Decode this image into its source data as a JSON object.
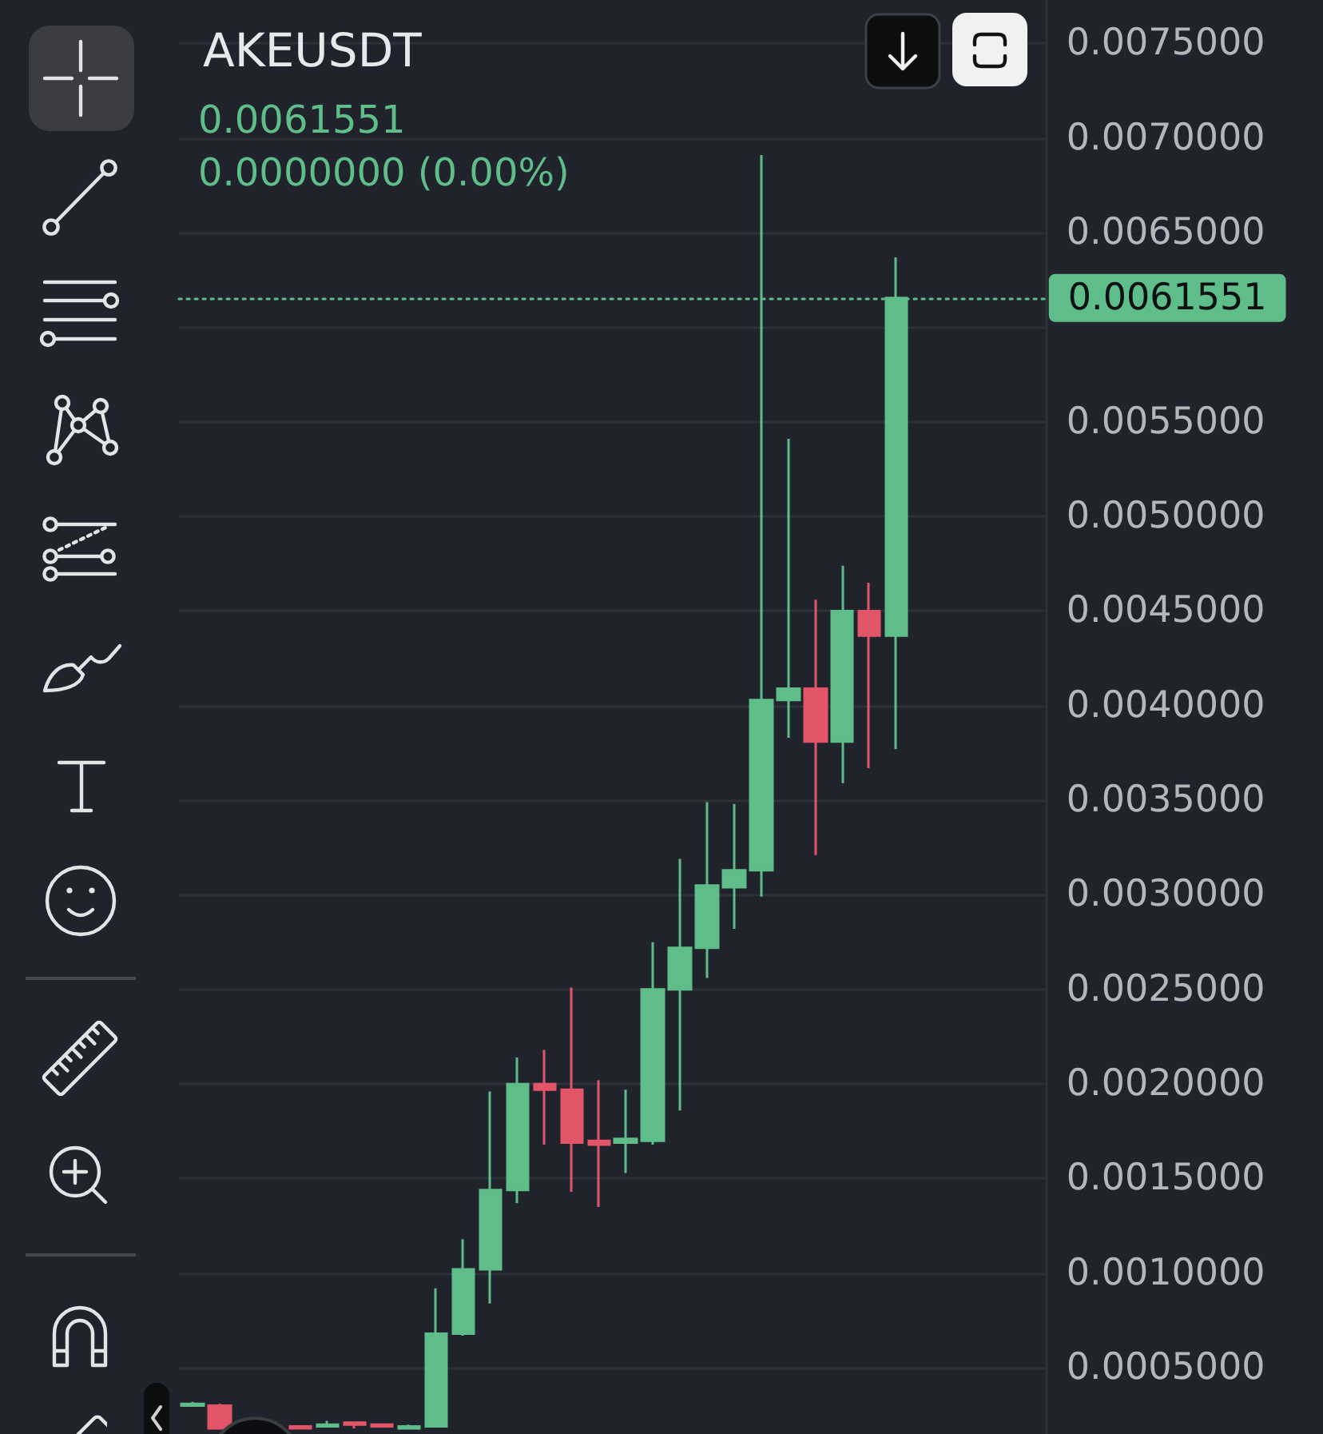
{
  "chart_data": {
    "type": "candlestick",
    "title": "AKEUSDT",
    "subtitle": "0.0061551",
    "annotations": [
      "0.0000000 (0.00%)"
    ],
    "categories": [
      null,
      null,
      null,
      null,
      null,
      null,
      null,
      null,
      null,
      null,
      null,
      null,
      null,
      null,
      null,
      null,
      null,
      null,
      null,
      null,
      null,
      null,
      null,
      null,
      null,
      null,
      null,
      null,
      null,
      null,
      null,
      null
    ],
    "ohlc": [
      [
        0.0003,
        0.00032,
        0.0003,
        0.00031
      ],
      [
        0.0003,
        0.00031,
        0.00018,
        0.00018
      ],
      null,
      null,
      [
        0.00019,
        0.00019,
        0.00018,
        0.00018
      ],
      [
        0.00019,
        0.00022,
        0.00019,
        0.0002
      ],
      [
        0.00021,
        0.00021,
        0.00018,
        0.0002
      ],
      [
        0.0002,
        0.0002,
        0.00019,
        0.00019
      ],
      [
        0.00018,
        0.0002,
        0.00018,
        0.00019
      ],
      [
        0.00019,
        0.00092,
        0.00019,
        0.00068
      ],
      [
        0.00068,
        0.00118,
        0.00067,
        0.00102
      ],
      [
        0.00102,
        0.00196,
        0.00084,
        0.00144
      ],
      [
        0.00144,
        0.00214,
        0.00137,
        0.002
      ],
      [
        0.002,
        0.00218,
        0.00168,
        0.00197
      ],
      [
        0.00197,
        0.00251,
        0.00143,
        0.00169
      ],
      [
        0.0017,
        0.00202,
        0.00135,
        0.00168
      ],
      [
        0.00169,
        0.00197,
        0.00153,
        0.00171
      ],
      [
        0.0017,
        0.00275,
        0.00168,
        0.0025
      ],
      [
        0.0025,
        0.00319,
        0.00186,
        0.00272
      ],
      [
        0.00272,
        0.00349,
        0.00256,
        0.00305
      ],
      [
        0.00304,
        0.00348,
        0.00282,
        0.00313
      ],
      [
        0.00313,
        0.00691,
        0.00299,
        0.00403
      ],
      [
        0.00403,
        0.00541,
        0.00383,
        0.00409
      ],
      [
        0.00409,
        0.00456,
        0.00321,
        0.00381
      ],
      [
        0.00381,
        0.00474,
        0.00359,
        0.0045
      ],
      [
        0.0045,
        0.00465,
        0.00367,
        0.00437
      ],
      [
        0.00437,
        0.00637,
        0.00377,
        0.0061551
      ],
      null,
      null,
      null,
      null,
      null
    ],
    "colors": [
      "#5ebd89",
      "#e25568",
      null,
      null,
      "#e25568",
      "#5ebd89",
      "#e25568",
      "#e25568",
      "#5ebd89",
      "#5ebd89",
      "#5ebd89",
      "#5ebd89",
      "#5ebd89",
      "#e25568",
      "#e25568",
      "#e25568",
      "#5ebd89",
      "#5ebd89",
      "#5ebd89",
      "#5ebd89",
      "#5ebd89",
      "#5ebd89",
      "#5ebd89",
      "#e25568",
      "#5ebd89",
      "#e25568",
      "#5ebd89",
      null,
      null,
      null,
      null,
      null
    ],
    "ylim": [
      0.00015,
      0.00773
    ],
    "yticks": [
      {
        "value": 0.0005,
        "label": "0.0005000"
      },
      {
        "value": 0.001,
        "label": "0.0010000"
      },
      {
        "value": 0.0015,
        "label": "0.0015000"
      },
      {
        "value": 0.002,
        "label": "0.0020000"
      },
      {
        "value": 0.0025,
        "label": "0.0025000"
      },
      {
        "value": 0.003,
        "label": "0.0030000"
      },
      {
        "value": 0.0035,
        "label": "0.0035000"
      },
      {
        "value": 0.004,
        "label": "0.0040000"
      },
      {
        "value": 0.0045,
        "label": "0.0045000"
      },
      {
        "value": 0.005,
        "label": "0.0050000"
      },
      {
        "value": 0.0055,
        "label": "0.0055000"
      },
      {
        "value": 0.006,
        "label": null
      },
      {
        "value": 0.0065,
        "label": "0.0065000"
      },
      {
        "value": 0.007,
        "label": "0.0070000"
      },
      {
        "value": 0.0075,
        "label": "0.0075000"
      }
    ],
    "grid": "y",
    "tick_labels": "y",
    "ref_lines": [
      {
        "axis": "y",
        "value": 0.0061551,
        "label": "0.0061551",
        "color": "#5ebd89",
        "line_style": "dotted"
      }
    ]
  }
}
